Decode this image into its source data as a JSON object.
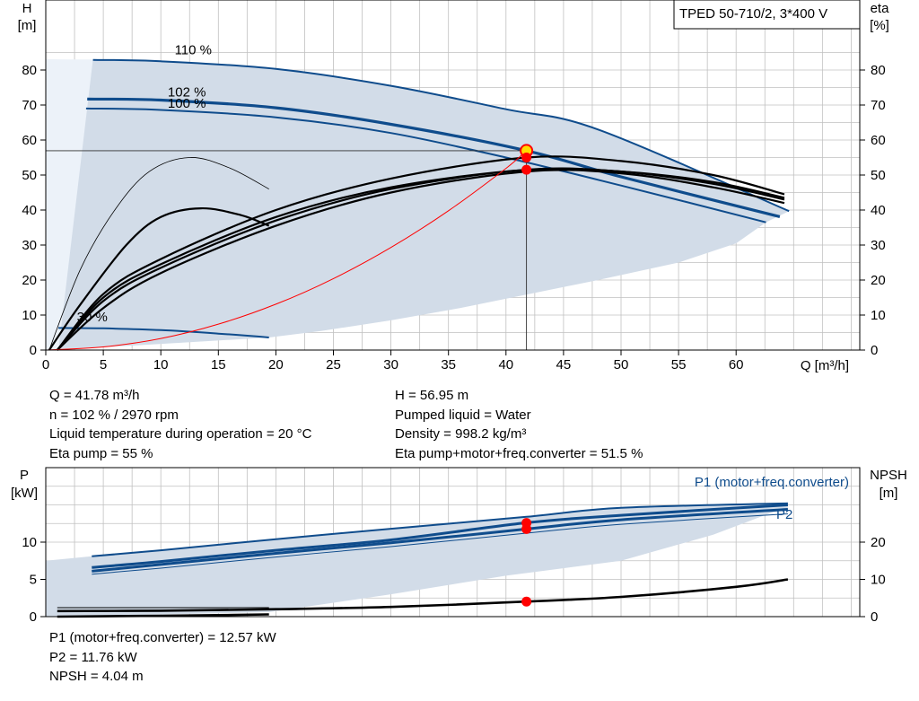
{
  "chart_data": {
    "type": "line",
    "title": "TPED 50-710/2, 3*400 V",
    "colors": {
      "curve": "#0f4c8c",
      "area": "#d2dce8",
      "area_light": "#ecf2f9",
      "grid": "#c0c0c0",
      "system": "#ff0000",
      "point": "#ff0000",
      "dutypoint": "#ffdd00"
    },
    "x_axis": {
      "label": "Q [m³/h]",
      "range": [
        0,
        70
      ],
      "ticks": [
        0,
        5,
        10,
        15,
        20,
        25,
        30,
        35,
        40,
        45,
        50,
        55,
        60
      ]
    },
    "head_panel": {
      "y_left": {
        "label_top": "H",
        "label_unit": "[m]",
        "range": [
          0,
          88
        ],
        "ticks": [
          0,
          10,
          20,
          30,
          40,
          50,
          60,
          70,
          80
        ]
      },
      "y_right": {
        "label_top": "eta",
        "label_unit": "[%]",
        "range": [
          0,
          88
        ],
        "ticks": [
          0,
          10,
          20,
          30,
          40,
          50,
          60,
          70,
          80
        ]
      },
      "series": [
        {
          "name": "110 %",
          "kind": "head",
          "x": [
            4.1,
            10,
            20,
            30,
            40,
            48,
            64.6
          ],
          "y": [
            82.9,
            82.5,
            80.3,
            75.5,
            68.8,
            63,
            39.7
          ]
        },
        {
          "name": "102 %",
          "kind": "head",
          "x": [
            3.6,
            10,
            20,
            30,
            41.78,
            50,
            63.8
          ],
          "y": [
            71.7,
            71.4,
            69.2,
            64.5,
            56.95,
            49.5,
            38.1
          ]
        },
        {
          "name": "100 %",
          "kind": "head",
          "x": [
            3.5,
            10,
            20,
            30,
            40,
            50,
            62.6
          ],
          "y": [
            69,
            68.6,
            66.5,
            62,
            55,
            47,
            36.5
          ]
        },
        {
          "name": "30 %",
          "kind": "head",
          "x": [
            1.1,
            5,
            10,
            15,
            19.4
          ],
          "y": [
            6.3,
            6.2,
            5.7,
            4.7,
            3.6
          ]
        },
        {
          "kind": "eta",
          "x": [
            0.3,
            3,
            6,
            9,
            12.5,
            16,
            19.4
          ],
          "y": [
            0,
            23,
            40,
            51,
            55,
            52,
            46
          ]
        },
        {
          "kind": "eta",
          "x": [
            0.3,
            3,
            7,
            10,
            13.5,
            17,
            19.4
          ],
          "y": [
            0,
            13,
            30,
            38,
            40.5,
            38.5,
            35.5
          ]
        },
        {
          "kind": "eta",
          "x": [
            1,
            5,
            10,
            20,
            30,
            41.78,
            50,
            58,
            64.2
          ],
          "y": [
            0,
            16,
            26,
            40,
            49,
            55,
            54,
            50,
            44.5
          ]
        },
        {
          "kind": "eta",
          "x": [
            1,
            5,
            10,
            20,
            30,
            41.78,
            50,
            58,
            64.2
          ],
          "y": [
            0,
            15,
            24.5,
            38,
            46.5,
            51.5,
            51,
            48,
            43.5
          ]
        },
        {
          "kind": "eta",
          "x": [
            1,
            5,
            10,
            20,
            30,
            41.78,
            50,
            58,
            64.2
          ],
          "y": [
            0,
            14,
            23.5,
            37,
            46,
            51.5,
            51,
            47.5,
            43
          ]
        },
        {
          "kind": "eta",
          "x": [
            1,
            5,
            10,
            20,
            30,
            41.78,
            50,
            58,
            64.2
          ],
          "y": [
            0,
            12,
            22,
            35.5,
            45,
            51,
            50.5,
            46.5,
            42
          ]
        },
        {
          "kind": "system",
          "x": [
            0,
            5,
            10,
            15,
            20,
            25,
            30,
            35,
            40,
            41.78
          ],
          "y": [
            0,
            0.9,
            3.3,
            7.4,
            13.1,
            20.4,
            29.3,
            39.8,
            51.9,
            56.95
          ]
        }
      ],
      "points": [
        {
          "x": 41.78,
          "y": 56.95,
          "role": "duty"
        },
        {
          "x": 41.78,
          "y": 55,
          "role": "eta-pump"
        },
        {
          "x": 41.78,
          "y": 51.5,
          "role": "eta-total"
        }
      ]
    },
    "power_panel": {
      "y_left": {
        "label_top": "P",
        "label_unit": "[kW]",
        "range": [
          0,
          16
        ],
        "ticks": [
          0,
          5,
          10
        ]
      },
      "y_right": {
        "label_top": "NPSH",
        "label_unit": "[m]",
        "range": [
          0,
          32
        ],
        "ticks": [
          0,
          10,
          20
        ]
      },
      "series": [
        {
          "name": "P1 (motor+freq.converter)",
          "kind": "power",
          "x": [
            4,
            10,
            20,
            30,
            41.78,
            50,
            64.5
          ],
          "y": [
            8.1,
            8.9,
            10.4,
            11.8,
            13.4,
            14.6,
            15.2
          ]
        },
        {
          "kind": "power",
          "x": [
            4,
            10,
            20,
            30,
            41.78,
            50,
            64.5
          ],
          "y": [
            6.6,
            7.4,
            8.9,
            10.3,
            12.6,
            13.6,
            15
          ]
        },
        {
          "kind": "power",
          "x": [
            4,
            10,
            20,
            30,
            41.78,
            50,
            64.5
          ],
          "y": [
            6.1,
            7,
            8.5,
            9.9,
            11.76,
            13,
            14.4
          ]
        },
        {
          "name": "P2",
          "kind": "power",
          "x": [
            4,
            10,
            20,
            30,
            41.78,
            50,
            64.5
          ],
          "y": [
            5.7,
            6.5,
            8,
            9.4,
            11.2,
            12.4,
            13.8
          ]
        },
        {
          "kind": "npsh",
          "x": [
            1,
            10,
            20,
            30,
            41.78,
            50,
            60,
            64.5
          ],
          "y": [
            1.5,
            1.6,
            2,
            2.6,
            4.04,
            5.3,
            8,
            10
          ]
        },
        {
          "kind": "npsh",
          "x": [
            1,
            5,
            10,
            15,
            19.4
          ],
          "y": [
            0,
            0.1,
            0.25,
            0.4,
            0.6
          ]
        }
      ],
      "points": [
        {
          "x": 41.78,
          "y": 12.57,
          "role": "p1"
        },
        {
          "x": 41.78,
          "y": 11.76,
          "role": "p2"
        },
        {
          "x": 41.78,
          "y": 4.04,
          "role": "npsh",
          "axis": "right"
        }
      ]
    }
  },
  "info_top": {
    "left": [
      "Q = 41.78 m³/h",
      "n = 102 % / 2970 rpm",
      "Liquid temperature during operation = 20 °C",
      "Eta pump = 55 %"
    ],
    "right": [
      "H = 56.95 m",
      "Pumped liquid = Water",
      "Density = 998.2 kg/m³",
      "Eta pump+motor+freq.converter = 51.5 %"
    ]
  },
  "info_bottom": {
    "left": [
      "P1 (motor+freq.converter) = 12.57 kW",
      "P2 = 11.76 kW",
      "NPSH = 4.04 m"
    ]
  }
}
